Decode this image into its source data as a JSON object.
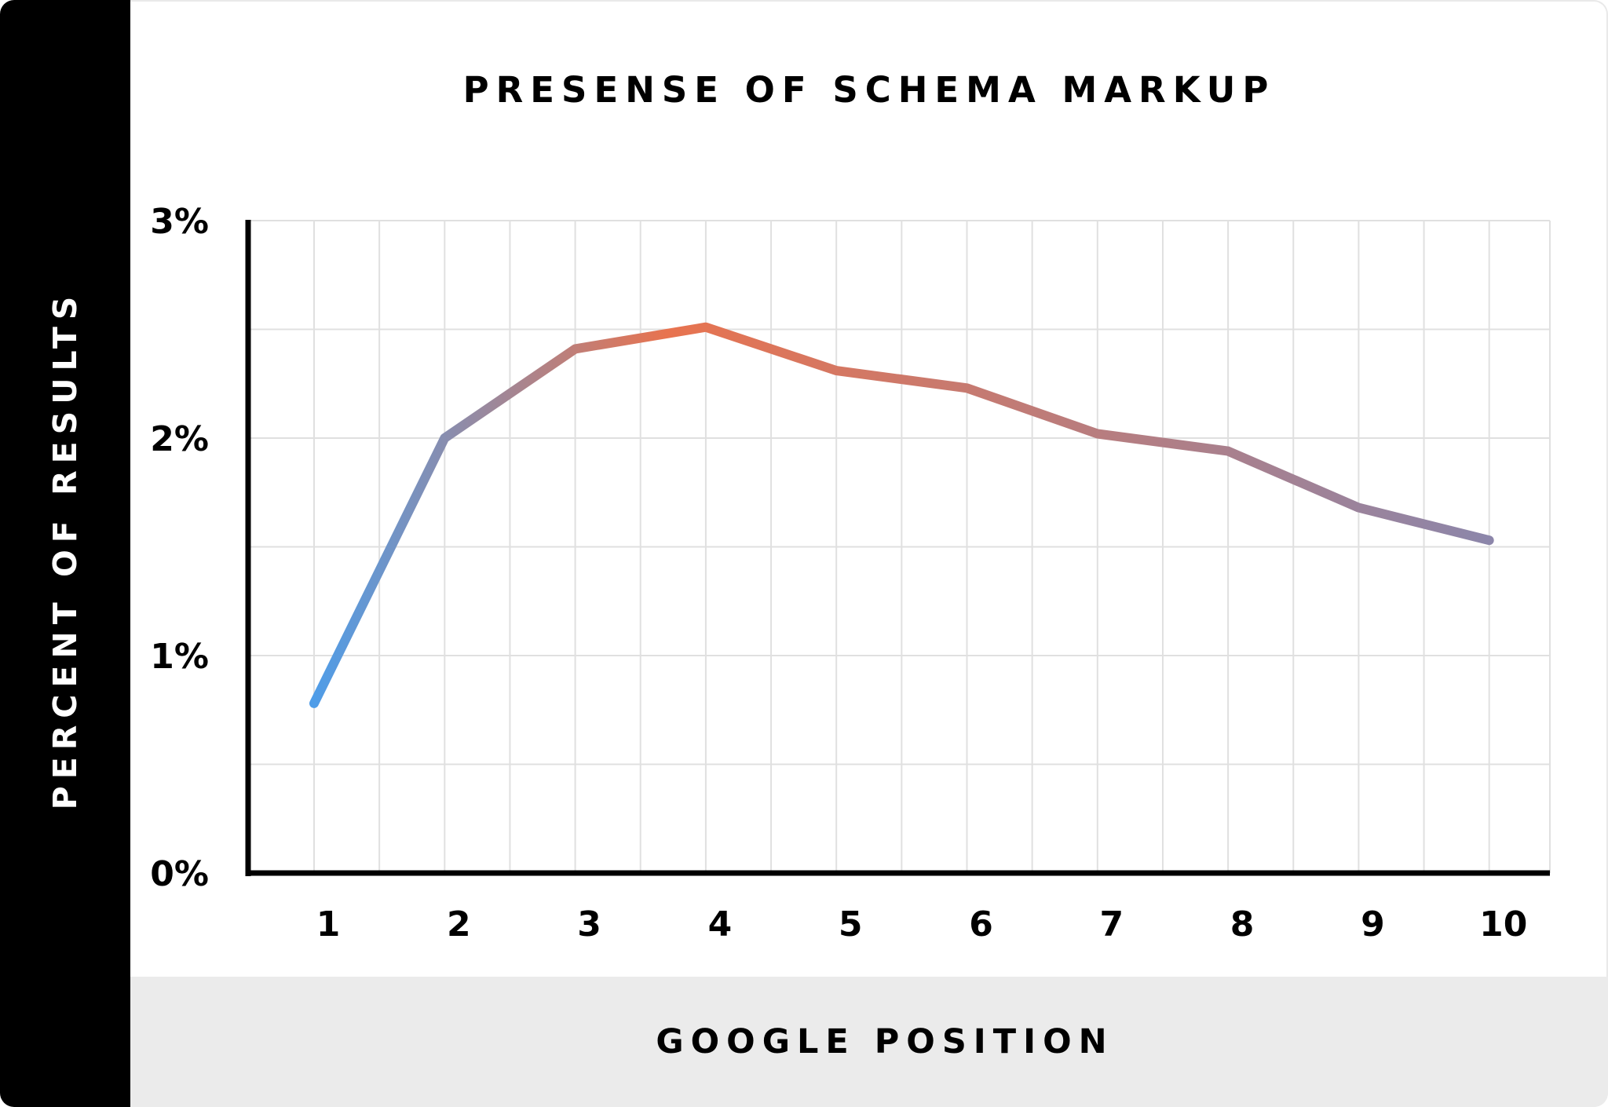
{
  "chart_data": {
    "type": "line",
    "title": "PRESENSE OF SCHEMA MARKUP",
    "xlabel": "GOOGLE POSITION",
    "ylabel": "PERCENT OF RESULTS",
    "x": [
      1,
      2,
      3,
      4,
      5,
      6,
      7,
      8,
      9,
      10
    ],
    "values": [
      0.78,
      2.0,
      2.41,
      2.51,
      2.31,
      2.23,
      2.02,
      1.94,
      1.68,
      1.53
    ],
    "x_tick_labels": [
      "1",
      "2",
      "3",
      "4",
      "5",
      "6",
      "7",
      "8",
      "9",
      "10"
    ],
    "y_ticks": [
      0,
      1,
      2,
      3
    ],
    "y_tick_labels": [
      "0%",
      "1%",
      "2%",
      "3%"
    ],
    "ylim": [
      0,
      3
    ],
    "grid": true,
    "line_gradient": {
      "start": "#4f9de8",
      "middle": "#e8734f",
      "end": "#8c86aa"
    }
  }
}
